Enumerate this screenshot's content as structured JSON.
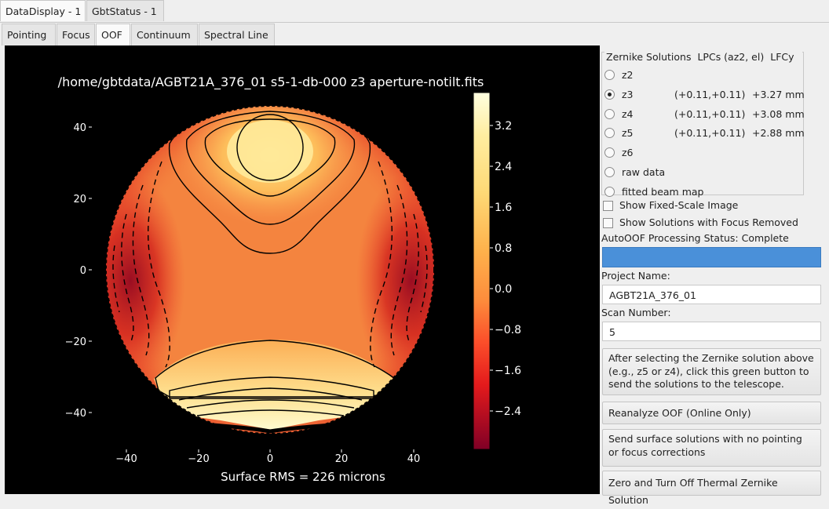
{
  "window_tabs": [
    "DataDisplay - 1",
    "GbtStatus - 1"
  ],
  "sub_tabs": [
    "Pointing",
    "Focus",
    "OOF",
    "Continuum",
    "Spectral Line"
  ],
  "plot": {
    "title": "/home/gbtdata/AGBT21A_376_01 s5-1-db-000 z3 aperture-notilt.fits",
    "xlabel": "Surface RMS = 226 microns",
    "x_ticks": [
      "−40",
      "−20",
      "0",
      "20",
      "40"
    ],
    "y_ticks": [
      "40",
      "20",
      "0",
      "−20",
      "−40"
    ],
    "colorbar_ticks": [
      "3.2",
      "2.4",
      "1.6",
      "0.8",
      "0.0",
      "−0.8",
      "−1.6",
      "−2.4"
    ],
    "colormap": "YlOrRd",
    "background_color": "#000000",
    "outside_aperture_color": "#f4843f"
  },
  "zernike": {
    "header": {
      "solutions": "Zernike Solutions",
      "lpcs": "LPCs (az2, el)",
      "lfc": "LFCy"
    },
    "options": [
      {
        "label": "z2",
        "lpc": "",
        "lfc": "",
        "selected": false
      },
      {
        "label": "z3",
        "lpc": "(+0.11,+0.11)",
        "lfc": "+3.27 mm",
        "selected": true
      },
      {
        "label": "z4",
        "lpc": "(+0.11,+0.11)",
        "lfc": "+3.08 mm",
        "selected": false
      },
      {
        "label": "z5",
        "lpc": "(+0.11,+0.11)",
        "lfc": "+2.88 mm",
        "selected": false
      },
      {
        "label": "z6",
        "lpc": "",
        "lfc": "",
        "selected": false
      },
      {
        "label": "raw data",
        "lpc": "",
        "lfc": "",
        "selected": false
      },
      {
        "label": "fitted beam map",
        "lpc": "",
        "lfc": "",
        "selected": false
      }
    ]
  },
  "show_fixed_scale": "Show Fixed-Scale Image",
  "show_focus_removed": "Show Solutions with Focus Removed",
  "status_text": "AutoOOF Processing Status: Complete",
  "status_bar_color": "#4a90d9",
  "project_label": "Project Name:",
  "project_value": "AGBT21A_376_01",
  "scan_label": "Scan Number:",
  "scan_value": "5",
  "buttons": {
    "send_solutions": "After selecting the Zernike solution above\n (e.g., z5 or z4), click this green button to\n send the solutions to the telescope.",
    "reanalyze": "Reanalyze OOF (Online Only)",
    "send_no_pointing": "Send surface solutions with no pointing\n or focus corrections",
    "zero_thermal": "Zero and Turn Off Thermal Zernike Solution"
  }
}
